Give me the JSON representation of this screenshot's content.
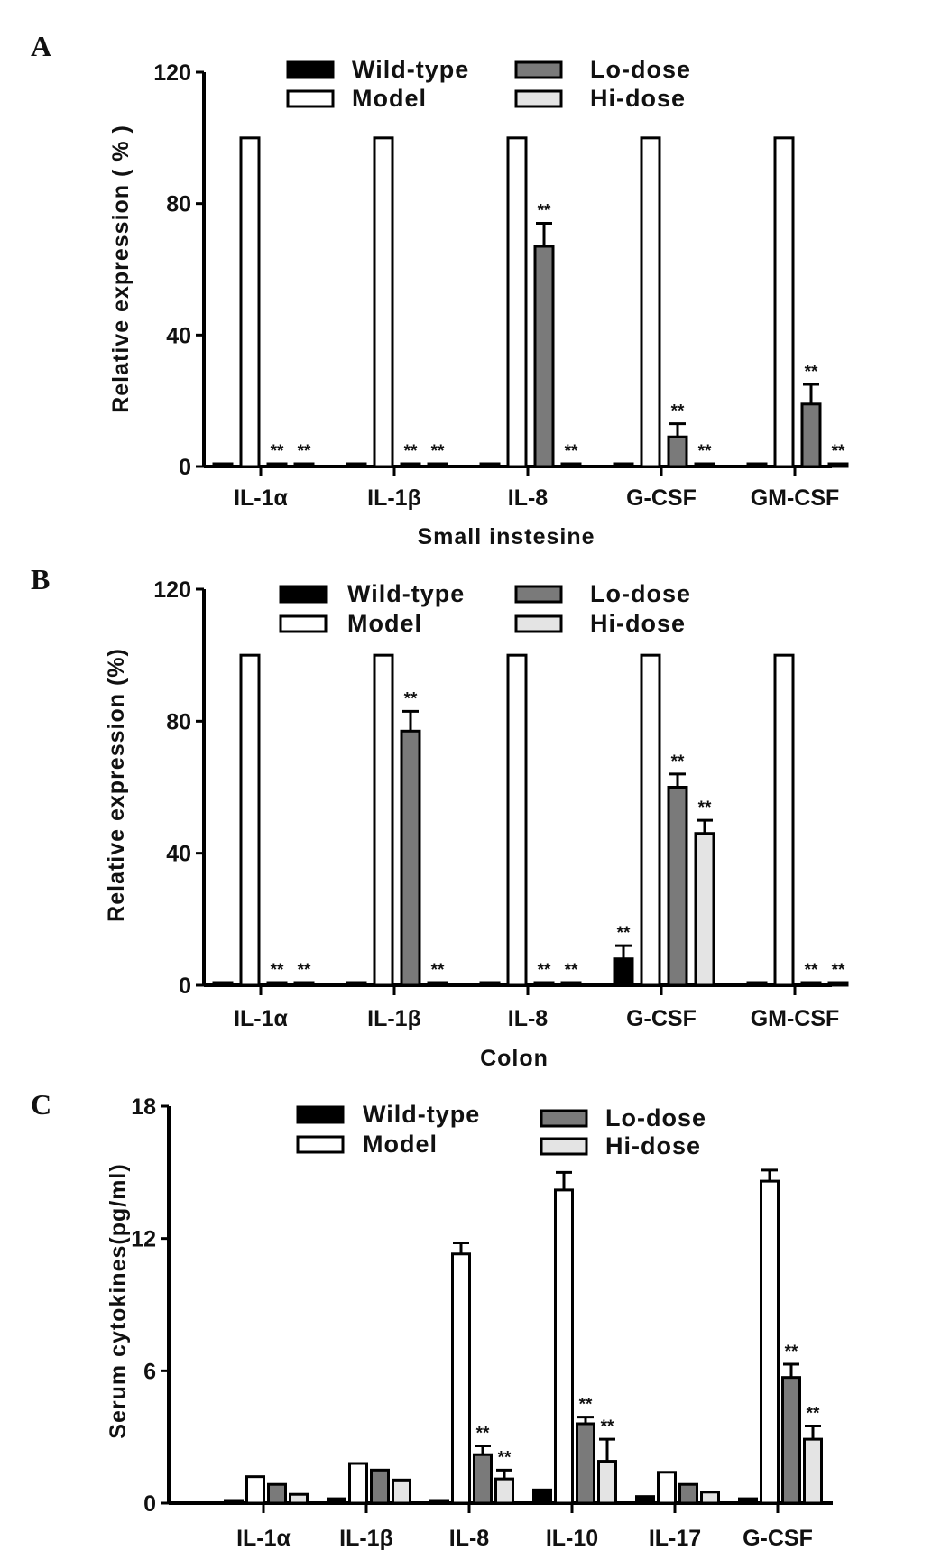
{
  "chart_data": [
    {
      "panel_label": "A",
      "type": "bar",
      "categories": [
        "IL-1α",
        "IL-1β",
        "IL-8",
        "G-CSF",
        "GM-CSF"
      ],
      "xlabel": "Small instesine",
      "ylabel": "Relative expression ( % )",
      "ylim": [
        0,
        120
      ],
      "yticks": [
        "0",
        "40",
        "80",
        "120"
      ],
      "grid": false,
      "legend_position": "top",
      "annotation": "**",
      "series": [
        {
          "name": "Wild-type",
          "color": "#000000",
          "values": [
            0.5,
            0.5,
            0.5,
            0.5,
            0.5
          ],
          "errors": [
            0,
            0,
            0,
            0,
            0
          ],
          "significant": [
            false,
            false,
            false,
            false,
            false
          ]
        },
        {
          "name": "Model",
          "color": "#ffffff",
          "values": [
            100,
            100,
            100,
            100,
            100
          ],
          "errors": [
            0,
            0,
            0,
            0,
            0
          ],
          "significant": [
            false,
            false,
            false,
            false,
            false
          ]
        },
        {
          "name": "Lo-dose",
          "color": "#7a7a7a",
          "values": [
            0.5,
            0.5,
            67,
            9,
            19
          ],
          "errors": [
            0,
            0,
            7,
            4,
            6
          ],
          "significant": [
            true,
            true,
            true,
            true,
            true
          ]
        },
        {
          "name": "Hi-dose",
          "color": "#e4e4e4",
          "values": [
            0.5,
            0.5,
            0.3,
            0.5,
            0.5
          ],
          "errors": [
            0,
            0,
            0,
            0,
            0
          ],
          "significant": [
            true,
            true,
            true,
            true,
            true
          ]
        }
      ]
    },
    {
      "panel_label": "B",
      "type": "bar",
      "categories": [
        "IL-1α",
        "IL-1β",
        "IL-8",
        "G-CSF",
        "GM-CSF"
      ],
      "xlabel": "Colon",
      "ylabel": "Relative expression  (%)",
      "ylim": [
        0,
        120
      ],
      "yticks": [
        "0",
        "40",
        "80",
        "120"
      ],
      "grid": false,
      "legend_position": "top",
      "annotation": "**",
      "series": [
        {
          "name": "Wild-type",
          "color": "#000000",
          "values": [
            0.2,
            0.5,
            0.2,
            8,
            0.5
          ],
          "errors": [
            0,
            0,
            0,
            4,
            0
          ],
          "significant": [
            false,
            false,
            false,
            true,
            false
          ]
        },
        {
          "name": "Model",
          "color": "#ffffff",
          "values": [
            100,
            100,
            100,
            100,
            100
          ],
          "errors": [
            0,
            0,
            0,
            0,
            0
          ],
          "significant": [
            false,
            false,
            false,
            false,
            false
          ]
        },
        {
          "name": "Lo-dose",
          "color": "#7a7a7a",
          "values": [
            0.2,
            77,
            0.2,
            60,
            0.5
          ],
          "errors": [
            0,
            6,
            0,
            4,
            0
          ],
          "significant": [
            true,
            true,
            true,
            true,
            true
          ]
        },
        {
          "name": "Hi-dose",
          "color": "#e4e4e4",
          "values": [
            0.2,
            0.5,
            0.2,
            46,
            0.5
          ],
          "errors": [
            0,
            0,
            0,
            4,
            0
          ],
          "significant": [
            true,
            true,
            true,
            true,
            true
          ]
        }
      ]
    },
    {
      "panel_label": "C",
      "type": "bar",
      "categories": [
        "IL-1α",
        "IL-1β",
        "IL-8",
        "IL-10",
        "IL-17",
        "G-CSF"
      ],
      "xlabel": "",
      "ylabel": "Serum cytokines(pg/ml)",
      "ylim": [
        0,
        18
      ],
      "yticks": [
        "0",
        "6",
        "12",
        "18"
      ],
      "grid": false,
      "legend_position": "top",
      "annotation": "**",
      "series": [
        {
          "name": "Wild-type",
          "color": "#000000",
          "values": [
            0.1,
            0.2,
            0.1,
            0.6,
            0.3,
            0.2
          ],
          "errors": [
            0,
            0,
            0,
            0,
            0,
            0
          ],
          "significant": [
            false,
            false,
            false,
            false,
            false,
            false
          ]
        },
        {
          "name": "Model",
          "color": "#ffffff",
          "values": [
            1.2,
            1.8,
            11.3,
            14.2,
            1.4,
            14.6
          ],
          "errors": [
            0,
            0,
            0.5,
            0.8,
            0,
            0.5
          ],
          "significant": [
            false,
            false,
            false,
            false,
            false,
            false
          ]
        },
        {
          "name": "Lo-dose",
          "color": "#7a7a7a",
          "values": [
            0.85,
            1.5,
            2.2,
            3.6,
            0.85,
            5.7
          ],
          "errors": [
            0,
            0,
            0.4,
            0.3,
            0,
            0.6
          ],
          "significant": [
            false,
            false,
            true,
            true,
            false,
            true
          ]
        },
        {
          "name": "Hi-dose",
          "color": "#e4e4e4",
          "values": [
            0.4,
            1.05,
            1.1,
            1.9,
            0.5,
            2.9
          ],
          "errors": [
            0,
            0,
            0.4,
            1.0,
            0,
            0.6
          ],
          "significant": [
            false,
            false,
            true,
            true,
            false,
            true
          ]
        }
      ]
    }
  ]
}
